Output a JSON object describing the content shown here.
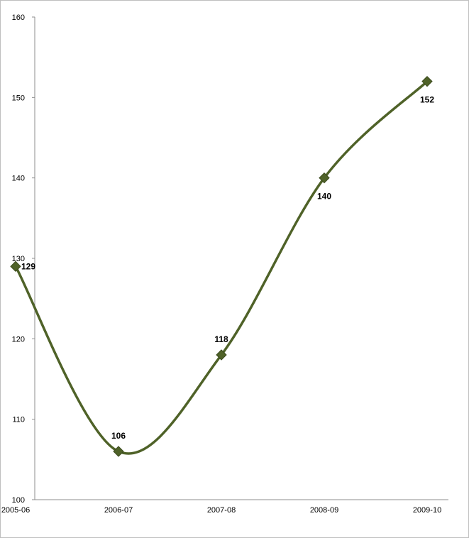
{
  "chart_data": {
    "type": "line",
    "categories": [
      "2005-06",
      "2006-07",
      "2007-08",
      "2008-09",
      "2009-10"
    ],
    "series": [
      {
        "values": [
          129,
          106,
          118,
          140,
          152
        ]
      }
    ],
    "data_labels": [
      "129",
      "106",
      "118",
      "140",
      "152"
    ],
    "yticks": [
      "100",
      "110",
      "120",
      "130",
      "140",
      "150",
      "160"
    ],
    "ylim": [
      100,
      160
    ],
    "grid": false,
    "smooth": true,
    "line_color": "#4f6228",
    "marker_color": "#4f6228",
    "marker": "diamond"
  }
}
